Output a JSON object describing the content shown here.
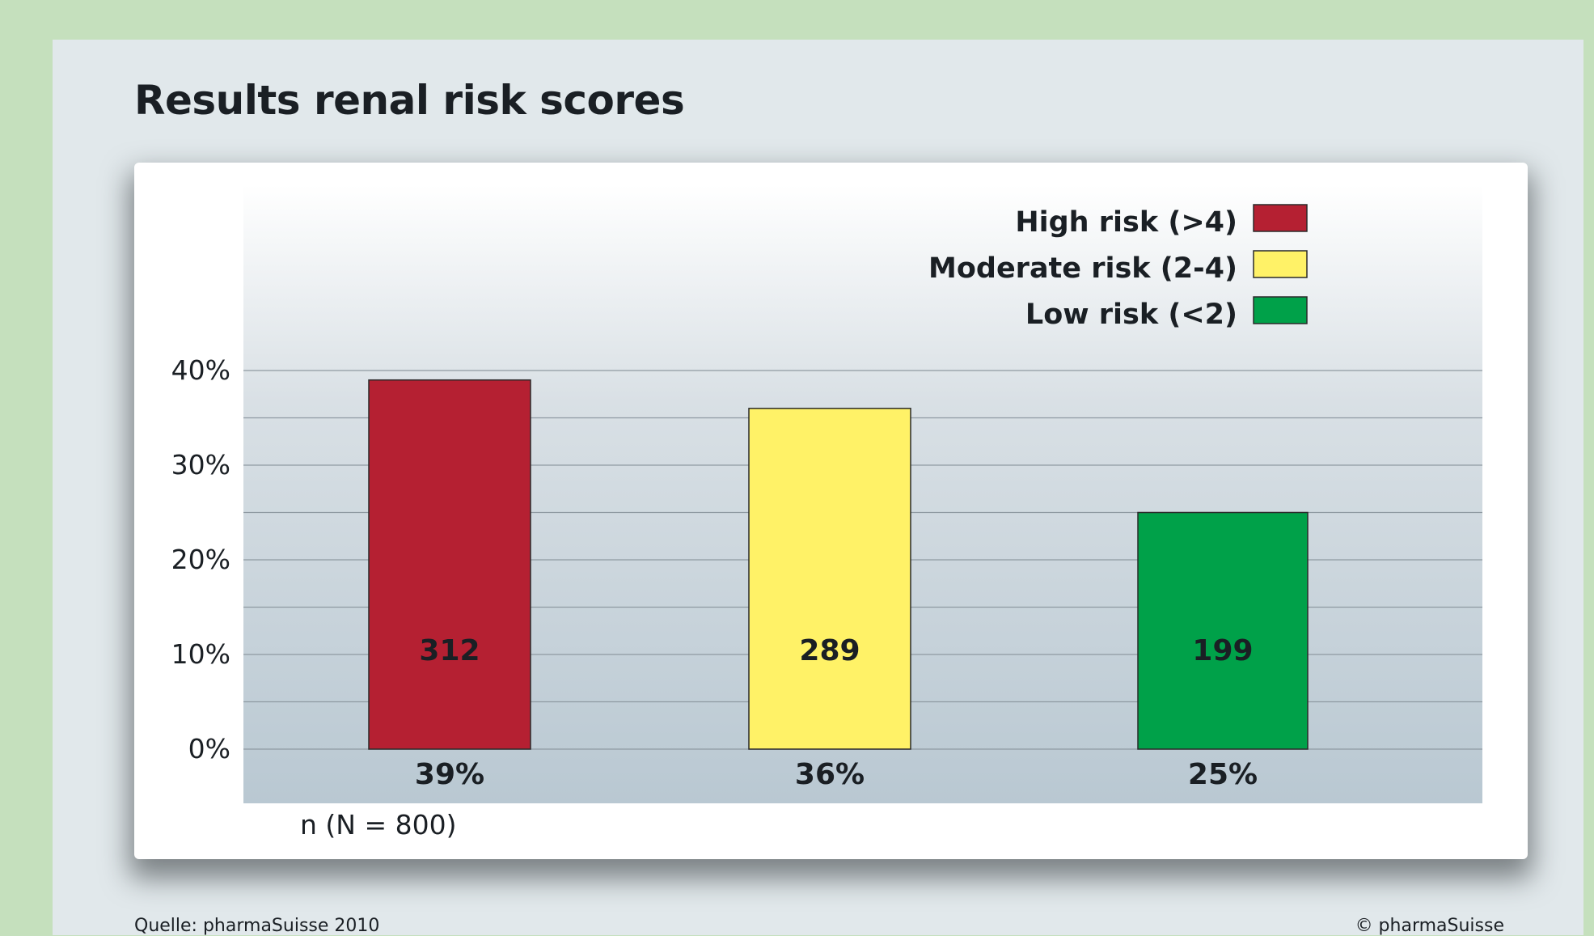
{
  "chart_data": {
    "type": "bar",
    "title": "Results renal risk scores",
    "categories": [
      "High risk (>4)",
      "Moderate risk (2-4)",
      "Low risk (<2)"
    ],
    "values": [
      39,
      36,
      25
    ],
    "value_labels": [
      "39%",
      "36%",
      "25%"
    ],
    "counts": [
      "312",
      "289",
      "199"
    ],
    "colors": [
      "#b52032",
      "#fff267",
      "#00a149"
    ],
    "yticks": [
      "0%",
      "10%",
      "20%",
      "30%",
      "40%"
    ],
    "ylim": [
      0,
      40
    ],
    "grid": true,
    "legend_position": "top-right",
    "xlabel": "n (N = 800)"
  },
  "footer": {
    "source": "Quelle: pharmaSuisse 2010",
    "copyright": "© pharmaSuisse"
  }
}
